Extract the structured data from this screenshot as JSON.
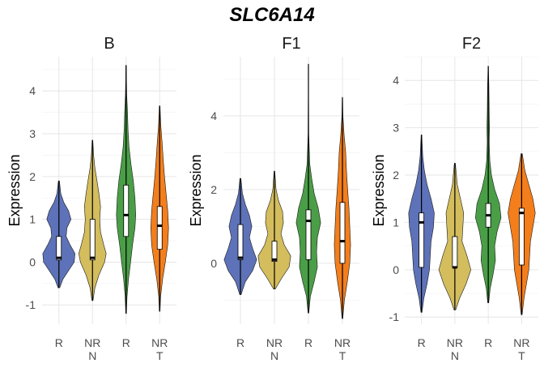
{
  "title": "SLC6A14",
  "ylabel": "Expression",
  "colors": {
    "R": "#5d72b8",
    "NR N": "#d4bd5d",
    "R T": "#4a9e47",
    "NR T": "#f47e1b"
  },
  "chart_data": [
    {
      "type": "violin",
      "panel": "B",
      "ylabel": "Expression",
      "ylim": [
        -1.45,
        4.8
      ],
      "yticks": [
        -1,
        0,
        1,
        2,
        3,
        4
      ],
      "categories": [
        {
          "top": "R",
          "bottom": "",
          "color": "#5d72b8",
          "min": -0.6,
          "max": 1.9,
          "q1": 0.05,
          "median": 0.1,
          "q3": 0.6,
          "density": [
            [
              -0.6,
              0.05
            ],
            [
              -0.4,
              0.25
            ],
            [
              -0.2,
              0.6
            ],
            [
              0.0,
              0.95
            ],
            [
              0.2,
              1.0
            ],
            [
              0.4,
              0.7
            ],
            [
              0.6,
              0.45
            ],
            [
              0.8,
              0.5
            ],
            [
              1.0,
              0.75
            ],
            [
              1.2,
              0.6
            ],
            [
              1.4,
              0.3
            ],
            [
              1.6,
              0.12
            ],
            [
              1.9,
              0.03
            ]
          ]
        },
        {
          "top": "NR",
          "bottom": "N",
          "color": "#d4bd5d",
          "min": -0.9,
          "max": 2.85,
          "q1": 0.05,
          "median": 0.1,
          "q3": 1.0,
          "density": [
            [
              -0.9,
              0.03
            ],
            [
              -0.6,
              0.15
            ],
            [
              -0.3,
              0.4
            ],
            [
              0.0,
              0.75
            ],
            [
              0.2,
              0.85
            ],
            [
              0.4,
              0.7
            ],
            [
              0.7,
              0.5
            ],
            [
              1.0,
              0.45
            ],
            [
              1.3,
              0.5
            ],
            [
              1.6,
              0.4
            ],
            [
              1.9,
              0.28
            ],
            [
              2.2,
              0.15
            ],
            [
              2.5,
              0.07
            ],
            [
              2.85,
              0.02
            ]
          ]
        },
        {
          "top": "R",
          "bottom": "",
          "color": "#4a9e47",
          "min": -1.2,
          "max": 4.6,
          "q1": 0.6,
          "median": 1.1,
          "q3": 1.8,
          "density": [
            [
              -1.2,
              0.02
            ],
            [
              -0.8,
              0.06
            ],
            [
              -0.4,
              0.15
            ],
            [
              0.0,
              0.28
            ],
            [
              0.4,
              0.4
            ],
            [
              0.8,
              0.55
            ],
            [
              1.1,
              0.6
            ],
            [
              1.5,
              0.55
            ],
            [
              1.9,
              0.45
            ],
            [
              2.3,
              0.3
            ],
            [
              2.7,
              0.18
            ],
            [
              3.1,
              0.12
            ],
            [
              3.5,
              0.09
            ],
            [
              3.9,
              0.04
            ],
            [
              4.3,
              0.02
            ],
            [
              4.6,
              0.01
            ]
          ]
        },
        {
          "top": "NR",
          "bottom": "T",
          "color": "#f47e1b",
          "min": -1.15,
          "max": 3.65,
          "q1": 0.3,
          "median": 0.85,
          "q3": 1.3,
          "density": [
            [
              -1.15,
              0.02
            ],
            [
              -0.8,
              0.06
            ],
            [
              -0.4,
              0.18
            ],
            [
              0.0,
              0.35
            ],
            [
              0.4,
              0.5
            ],
            [
              0.8,
              0.55
            ],
            [
              1.2,
              0.5
            ],
            [
              1.6,
              0.4
            ],
            [
              2.0,
              0.3
            ],
            [
              2.4,
              0.22
            ],
            [
              2.8,
              0.15
            ],
            [
              3.2,
              0.07
            ],
            [
              3.65,
              0.02
            ]
          ]
        }
      ]
    },
    {
      "type": "violin",
      "panel": "F1",
      "ylabel": "Expression",
      "ylim": [
        -1.65,
        5.6
      ],
      "yticks": [
        0,
        2,
        4
      ],
      "categories": [
        {
          "top": "R",
          "bottom": "",
          "color": "#5d72b8",
          "min": -0.85,
          "max": 2.3,
          "q1": 0.1,
          "median": 0.15,
          "q3": 1.05,
          "density": [
            [
              -0.85,
              0.04
            ],
            [
              -0.5,
              0.3
            ],
            [
              -0.2,
              0.75
            ],
            [
              0.1,
              1.0
            ],
            [
              0.4,
              0.75
            ],
            [
              0.7,
              0.55
            ],
            [
              1.0,
              0.7
            ],
            [
              1.3,
              0.55
            ],
            [
              1.6,
              0.3
            ],
            [
              1.9,
              0.12
            ],
            [
              2.3,
              0.03
            ]
          ]
        },
        {
          "top": "NR",
          "bottom": "N",
          "color": "#d4bd5d",
          "min": -0.7,
          "max": 2.5,
          "q1": 0.05,
          "median": 0.1,
          "q3": 0.6,
          "density": [
            [
              -0.7,
              0.05
            ],
            [
              -0.4,
              0.45
            ],
            [
              -0.1,
              0.9
            ],
            [
              0.2,
              1.0
            ],
            [
              0.5,
              0.6
            ],
            [
              0.8,
              0.4
            ],
            [
              1.1,
              0.55
            ],
            [
              1.4,
              0.5
            ],
            [
              1.7,
              0.25
            ],
            [
              2.0,
              0.1
            ],
            [
              2.5,
              0.02
            ]
          ]
        },
        {
          "top": "R",
          "bottom": "",
          "color": "#4a9e47",
          "min": -1.35,
          "max": 5.4,
          "q1": 0.1,
          "median": 1.15,
          "q3": 1.45,
          "density": [
            [
              -1.35,
              0.02
            ],
            [
              -0.9,
              0.12
            ],
            [
              -0.5,
              0.35
            ],
            [
              -0.1,
              0.55
            ],
            [
              0.3,
              0.5
            ],
            [
              0.7,
              0.55
            ],
            [
              1.1,
              0.75
            ],
            [
              1.5,
              0.6
            ],
            [
              1.9,
              0.35
            ],
            [
              2.3,
              0.2
            ],
            [
              2.7,
              0.08
            ],
            [
              3.5,
              0.02
            ],
            [
              4.5,
              0.01
            ],
            [
              5.4,
              0.005
            ]
          ]
        },
        {
          "top": "NR",
          "bottom": "T",
          "color": "#f47e1b",
          "min": -1.5,
          "max": 4.5,
          "q1": 0.0,
          "median": 0.6,
          "q3": 1.65,
          "density": [
            [
              -1.5,
              0.02
            ],
            [
              -1.0,
              0.12
            ],
            [
              -0.5,
              0.3
            ],
            [
              0.0,
              0.45
            ],
            [
              0.5,
              0.5
            ],
            [
              1.0,
              0.45
            ],
            [
              1.5,
              0.4
            ],
            [
              2.0,
              0.32
            ],
            [
              2.5,
              0.25
            ],
            [
              3.0,
              0.2
            ],
            [
              3.5,
              0.1
            ],
            [
              4.0,
              0.03
            ],
            [
              4.5,
              0.01
            ]
          ]
        }
      ]
    },
    {
      "type": "violin",
      "panel": "F2",
      "ylabel": "Expression",
      "ylim": [
        -1.15,
        4.5
      ],
      "yticks": [
        -1,
        0,
        1,
        2,
        3,
        4
      ],
      "categories": [
        {
          "top": "R",
          "bottom": "",
          "color": "#5d72b8",
          "min": -0.9,
          "max": 2.85,
          "q1": 0.05,
          "median": 1.0,
          "q3": 1.2,
          "density": [
            [
              -0.9,
              0.03
            ],
            [
              -0.6,
              0.15
            ],
            [
              -0.3,
              0.35
            ],
            [
              0.0,
              0.5
            ],
            [
              0.3,
              0.55
            ],
            [
              0.6,
              0.6
            ],
            [
              0.9,
              0.75
            ],
            [
              1.2,
              0.8
            ],
            [
              1.5,
              0.6
            ],
            [
              1.8,
              0.35
            ],
            [
              2.1,
              0.18
            ],
            [
              2.4,
              0.08
            ],
            [
              2.85,
              0.02
            ]
          ]
        },
        {
          "top": "NR",
          "bottom": "N",
          "color": "#d4bd5d",
          "min": -0.85,
          "max": 2.25,
          "q1": 0.05,
          "median": 0.05,
          "q3": 0.7,
          "density": [
            [
              -0.85,
              0.05
            ],
            [
              -0.6,
              0.3
            ],
            [
              -0.3,
              0.7
            ],
            [
              0.0,
              1.0
            ],
            [
              0.3,
              0.75
            ],
            [
              0.6,
              0.45
            ],
            [
              0.9,
              0.5
            ],
            [
              1.2,
              0.55
            ],
            [
              1.5,
              0.35
            ],
            [
              1.8,
              0.15
            ],
            [
              2.25,
              0.03
            ]
          ]
        },
        {
          "top": "R",
          "bottom": "",
          "color": "#4a9e47",
          "min": -0.7,
          "max": 4.3,
          "q1": 0.9,
          "median": 1.15,
          "q3": 1.4,
          "density": [
            [
              -0.7,
              0.03
            ],
            [
              -0.4,
              0.12
            ],
            [
              -0.1,
              0.3
            ],
            [
              0.2,
              0.45
            ],
            [
              0.5,
              0.4
            ],
            [
              0.8,
              0.55
            ],
            [
              1.1,
              0.8
            ],
            [
              1.4,
              0.7
            ],
            [
              1.7,
              0.4
            ],
            [
              2.0,
              0.2
            ],
            [
              2.3,
              0.1
            ],
            [
              2.7,
              0.06
            ],
            [
              3.0,
              0.08
            ],
            [
              3.3,
              0.06
            ],
            [
              3.6,
              0.05
            ],
            [
              3.9,
              0.04
            ],
            [
              4.3,
              0.01
            ]
          ]
        },
        {
          "top": "NR",
          "bottom": "T",
          "color": "#f47e1b",
          "min": -0.95,
          "max": 2.45,
          "q1": 0.1,
          "median": 1.2,
          "q3": 1.3,
          "density": [
            [
              -0.95,
              0.03
            ],
            [
              -0.6,
              0.15
            ],
            [
              -0.3,
              0.3
            ],
            [
              0.0,
              0.45
            ],
            [
              0.3,
              0.5
            ],
            [
              0.6,
              0.55
            ],
            [
              0.9,
              0.7
            ],
            [
              1.2,
              0.85
            ],
            [
              1.5,
              0.7
            ],
            [
              1.8,
              0.45
            ],
            [
              2.1,
              0.2
            ],
            [
              2.45,
              0.04
            ]
          ]
        }
      ]
    }
  ]
}
